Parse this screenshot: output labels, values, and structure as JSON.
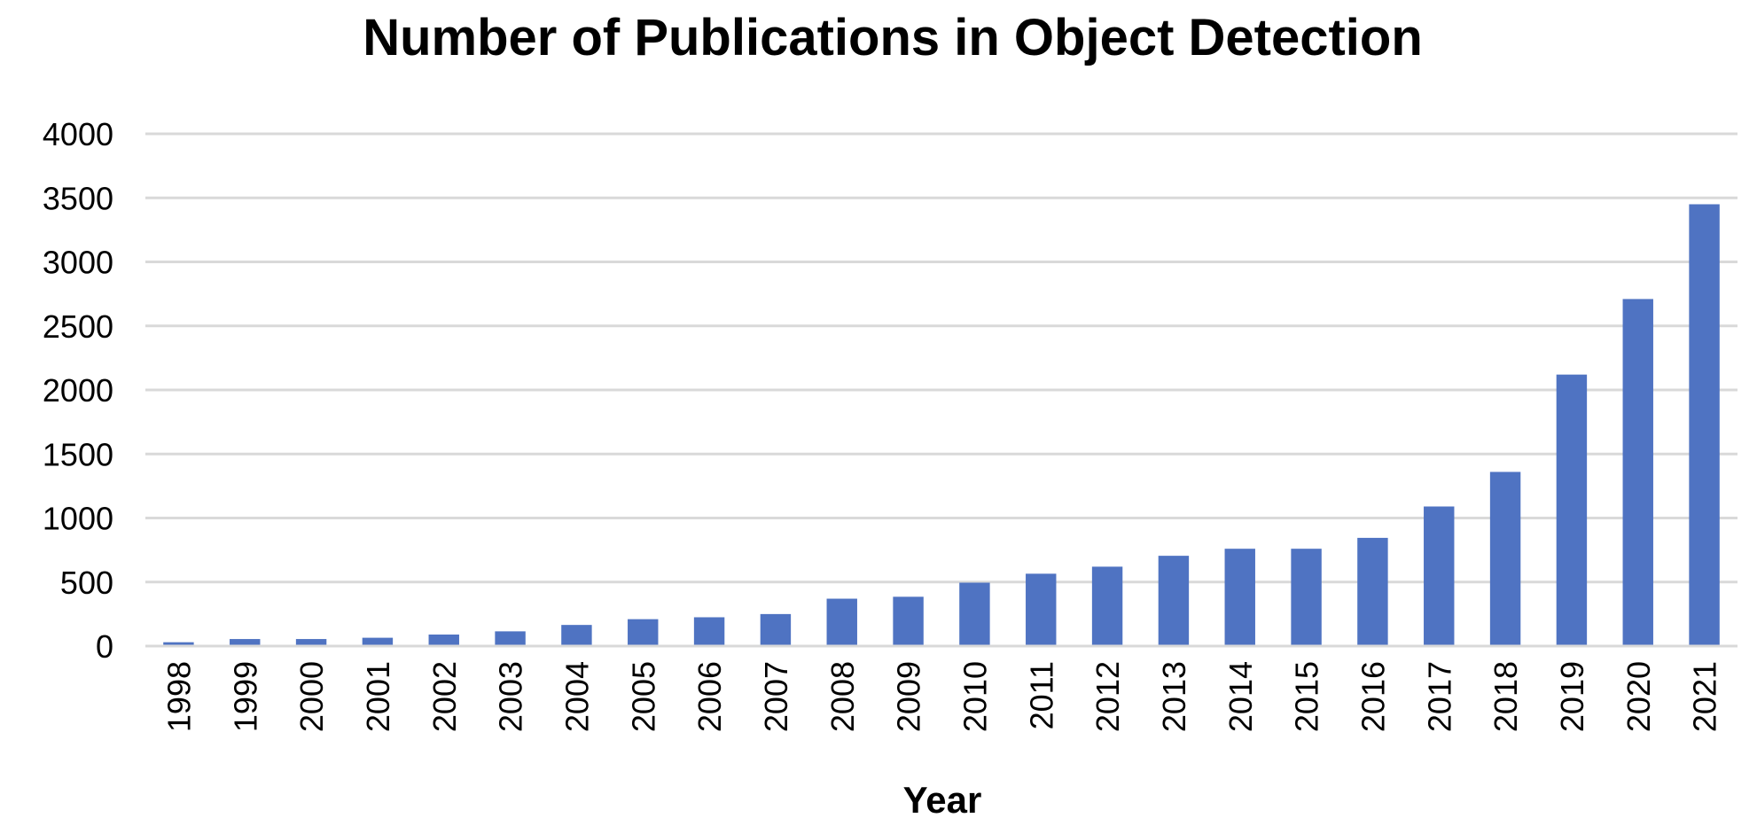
{
  "chart_data": {
    "type": "bar",
    "title": "Number of Publications in Object Detection",
    "xlabel": "Year",
    "ylabel": "",
    "categories": [
      "1998",
      "1999",
      "2000",
      "2001",
      "2002",
      "2003",
      "2004",
      "2005",
      "2006",
      "2007",
      "2008",
      "2009",
      "2010",
      "2011",
      "2012",
      "2013",
      "2014",
      "2015",
      "2016",
      "2017",
      "2018",
      "2019",
      "2020",
      "2021"
    ],
    "values": [
      30,
      55,
      55,
      65,
      90,
      115,
      165,
      210,
      225,
      250,
      370,
      385,
      495,
      565,
      620,
      705,
      760,
      760,
      845,
      1090,
      1360,
      2120,
      2710,
      3450
    ],
    "ylim": [
      0,
      4000
    ],
    "yticks": [
      0,
      500,
      1000,
      1500,
      2000,
      2500,
      3000,
      3500,
      4000
    ],
    "grid": true,
    "legend": "none",
    "colors": {
      "bar": "#4f73c2",
      "grid": "#d9d9d9",
      "text": "#000000"
    }
  }
}
